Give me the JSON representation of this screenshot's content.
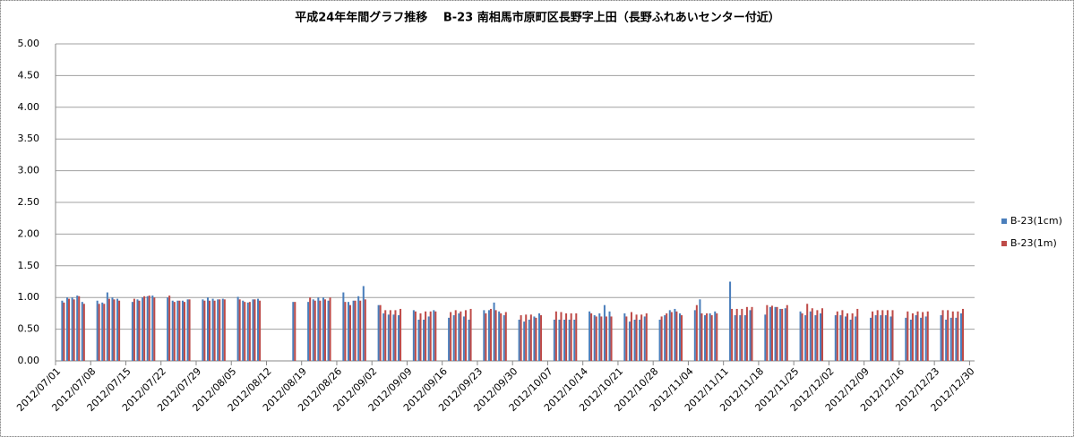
{
  "chart_data": {
    "type": "bar",
    "title": "平成24年年間グラフ推移　 B-23 南相馬市原町区長野字上田（長野ふれあいセンター付近）",
    "categories": [
      "2012/07/01",
      null,
      null,
      null,
      null,
      null,
      null,
      "2012/07/08",
      null,
      null,
      null,
      null,
      null,
      null,
      "2012/07/15",
      null,
      null,
      null,
      null,
      null,
      null,
      "2012/07/22",
      null,
      null,
      null,
      null,
      null,
      null,
      "2012/07/29",
      null,
      null,
      null,
      null,
      null,
      null,
      "2012/08/05",
      null,
      null,
      null,
      null,
      null,
      null,
      "2012/08/12",
      null,
      null,
      null,
      null,
      null,
      null,
      "2012/08/19",
      null,
      null,
      null,
      null,
      null,
      null,
      "2012/08/26",
      null,
      null,
      null,
      null,
      null,
      null,
      "2012/09/02",
      null,
      null,
      null,
      null,
      null,
      null,
      "2012/09/09",
      null,
      null,
      null,
      null,
      null,
      null,
      "2012/09/16",
      null,
      null,
      null,
      null,
      null,
      null,
      "2012/09/23",
      null,
      null,
      null,
      null,
      null,
      null,
      "2012/09/30",
      null,
      null,
      null,
      null,
      null,
      null,
      "2012/10/07",
      null,
      null,
      null,
      null,
      null,
      null,
      "2012/10/14",
      null,
      null,
      null,
      null,
      null,
      null,
      "2012/10/21",
      null,
      null,
      null,
      null,
      null,
      null,
      "2012/10/28",
      null,
      null,
      null,
      null,
      null,
      null,
      "2012/11/04",
      null,
      null,
      null,
      null,
      null,
      null,
      "2012/11/11",
      null,
      null,
      null,
      null,
      null,
      null,
      "2012/11/18",
      null,
      null,
      null,
      null,
      null,
      null,
      "2012/11/25",
      null,
      null,
      null,
      null,
      null,
      null,
      "2012/12/02",
      null,
      null,
      null,
      null,
      null,
      null,
      "2012/12/09",
      null,
      null,
      null,
      null,
      null,
      null,
      "2012/12/16",
      null,
      null,
      null,
      null,
      null,
      null,
      "2012/12/23",
      null,
      null,
      null,
      null,
      null,
      null,
      "2012/12/30"
    ],
    "series": [
      {
        "name": "B-23(1cm)",
        "color": "#4a7ebb",
        "values": [
          null,
          0.95,
          1.0,
          1.0,
          1.03,
          0.93,
          null,
          null,
          0.95,
          0.92,
          1.08,
          1.0,
          0.98,
          null,
          null,
          0.93,
          0.97,
          1.0,
          1.02,
          1.03,
          null,
          null,
          1.0,
          0.95,
          0.95,
          0.95,
          0.97,
          null,
          null,
          0.97,
          1.0,
          0.98,
          0.97,
          0.98,
          null,
          null,
          1.01,
          0.95,
          0.92,
          0.97,
          0.98,
          null,
          null,
          null,
          null,
          null,
          null,
          0.93,
          null,
          null,
          0.93,
          0.97,
          1.0,
          1.0,
          0.95,
          null,
          null,
          1.08,
          0.93,
          0.95,
          1.02,
          1.18,
          null,
          null,
          0.88,
          0.75,
          0.73,
          0.73,
          0.72,
          null,
          null,
          0.8,
          0.65,
          0.65,
          0.7,
          0.8,
          null,
          null,
          0.68,
          0.72,
          0.75,
          0.7,
          0.65,
          null,
          null,
          0.8,
          0.8,
          0.92,
          0.78,
          0.72,
          null,
          null,
          0.65,
          0.62,
          0.65,
          0.7,
          0.75,
          null,
          null,
          0.65,
          0.65,
          0.65,
          0.65,
          0.65,
          null,
          null,
          0.78,
          0.72,
          0.75,
          0.88,
          0.78,
          null,
          null,
          0.75,
          0.62,
          0.65,
          0.65,
          0.7,
          null,
          null,
          0.65,
          0.72,
          0.8,
          0.82,
          0.75,
          null,
          null,
          0.8,
          0.97,
          0.72,
          0.75,
          0.78,
          null,
          null,
          1.25,
          0.72,
          0.72,
          0.72,
          0.8,
          null,
          null,
          0.73,
          0.85,
          0.85,
          0.82,
          0.83,
          null,
          null,
          0.78,
          0.72,
          0.78,
          0.72,
          0.75,
          null,
          null,
          0.72,
          0.72,
          0.7,
          0.65,
          0.7,
          null,
          null,
          0.68,
          0.72,
          0.72,
          0.72,
          0.7,
          null,
          null,
          0.68,
          0.65,
          0.72,
          0.68,
          0.7,
          null,
          null,
          0.72,
          0.65,
          0.68,
          0.68,
          0.75,
          null,
          null
        ]
      },
      {
        "name": "B-23(1m)",
        "color": "#be4b48",
        "values": [
          null,
          0.92,
          0.98,
          0.97,
          1.02,
          0.9,
          null,
          null,
          0.9,
          0.9,
          0.98,
          0.97,
          0.95,
          null,
          null,
          0.98,
          0.95,
          1.02,
          1.03,
          1.0,
          null,
          null,
          1.03,
          0.93,
          0.95,
          0.93,
          0.97,
          null,
          null,
          0.95,
          0.95,
          0.95,
          0.97,
          0.97,
          null,
          null,
          0.97,
          0.93,
          0.93,
          0.97,
          0.95,
          null,
          null,
          null,
          null,
          null,
          null,
          0.93,
          null,
          null,
          1.0,
          0.95,
          0.95,
          0.97,
          1.0,
          null,
          null,
          0.93,
          0.88,
          0.95,
          0.95,
          0.97,
          null,
          null,
          0.88,
          0.8,
          0.8,
          0.8,
          0.82,
          null,
          null,
          0.78,
          0.75,
          0.78,
          0.78,
          0.78,
          null,
          null,
          0.77,
          0.8,
          0.78,
          0.8,
          0.82,
          null,
          null,
          0.75,
          0.82,
          0.8,
          0.75,
          0.77,
          null,
          null,
          0.72,
          0.73,
          0.73,
          0.68,
          0.72,
          null,
          null,
          0.78,
          0.77,
          0.75,
          0.75,
          0.75,
          null,
          null,
          0.75,
          0.7,
          0.7,
          0.7,
          0.7,
          null,
          null,
          0.7,
          0.77,
          0.73,
          0.73,
          0.75,
          null,
          null,
          0.7,
          0.75,
          0.77,
          0.78,
          0.72,
          null,
          null,
          0.88,
          0.75,
          0.75,
          0.72,
          0.75,
          null,
          null,
          0.82,
          0.82,
          0.82,
          0.85,
          0.85,
          null,
          null,
          0.88,
          0.87,
          0.85,
          0.82,
          0.88,
          null,
          null,
          0.75,
          0.9,
          0.83,
          0.8,
          0.83,
          null,
          null,
          0.78,
          0.8,
          0.75,
          0.75,
          0.82,
          null,
          null,
          0.78,
          0.8,
          0.8,
          0.8,
          0.8,
          null,
          null,
          0.78,
          0.75,
          0.78,
          0.77,
          0.78,
          null,
          null,
          0.8,
          0.8,
          0.78,
          0.78,
          0.82,
          null,
          null
        ]
      }
    ],
    "ylim": [
      0,
      5
    ],
    "yticks": [
      {
        "value": 0,
        "label": "0.00"
      },
      {
        "value": 0.5,
        "label": "0.50"
      },
      {
        "value": 1,
        "label": "1.00"
      },
      {
        "value": 1.5,
        "label": "1.50"
      },
      {
        "value": 2,
        "label": "2.00"
      },
      {
        "value": 2.5,
        "label": "2.50"
      },
      {
        "value": 3,
        "label": "3.00"
      },
      {
        "value": 3.5,
        "label": "3.50"
      },
      {
        "value": 4,
        "label": "4.00"
      },
      {
        "value": 4.5,
        "label": "4.50"
      },
      {
        "value": 5,
        "label": "5.00"
      }
    ],
    "grid": true,
    "legend": "right"
  }
}
